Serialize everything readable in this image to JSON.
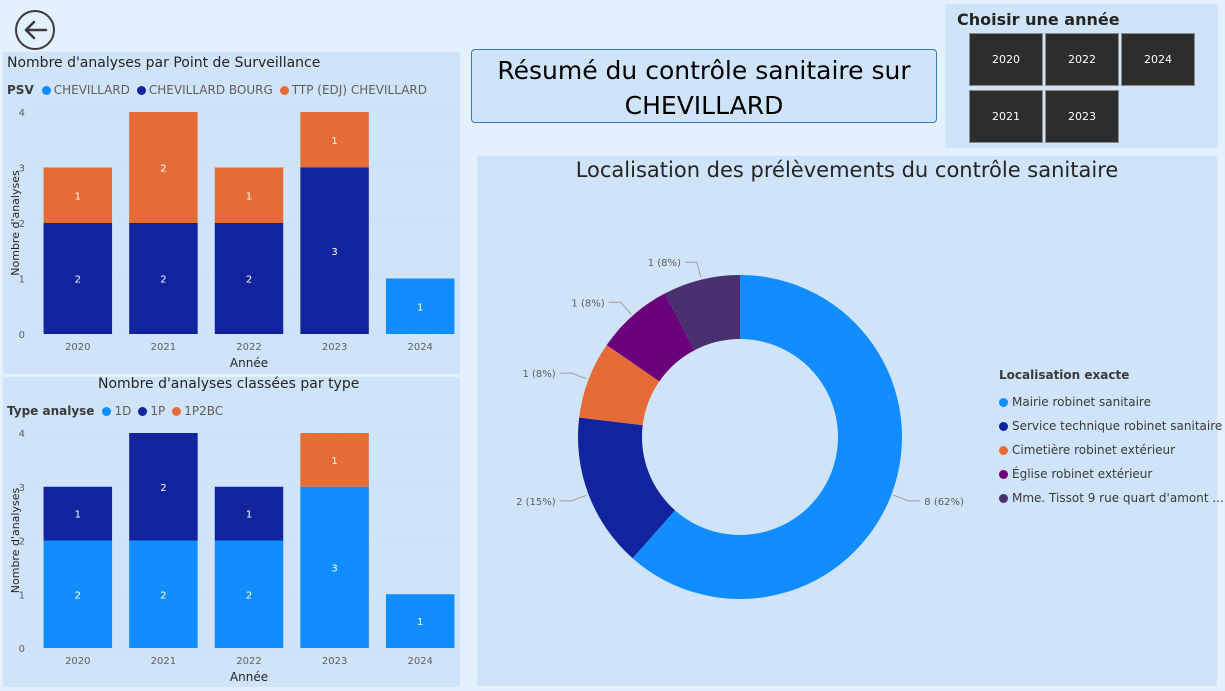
{
  "colors": {
    "light_blue": "#118dff",
    "dark_blue": "#12239e",
    "orange": "#e66c37",
    "purple": "#6b007b",
    "violet": "#4a2f6f"
  },
  "back_icon": "arrow-left-circle-icon",
  "summary": {
    "line1": "Résumé du contrôle sanitaire sur",
    "line2": "CHEVILLARD"
  },
  "year_filter": {
    "title": "Choisir une année",
    "years": [
      "2020",
      "2022",
      "2024",
      "2021",
      "2023"
    ]
  },
  "chart_data": [
    {
      "type": "bar",
      "stacked": true,
      "title": "Nombre d'analyses par Point de Surveillance",
      "legend_title": "PSV",
      "legend_position": "top-left",
      "categories": [
        "2020",
        "2021",
        "2022",
        "2023",
        "2024"
      ],
      "series": [
        {
          "name": "CHEVILLARD",
          "color": "#118dff",
          "values": [
            0,
            0,
            0,
            0,
            1
          ]
        },
        {
          "name": "CHEVILLARD BOURG",
          "color": "#12239e",
          "values": [
            2,
            2,
            2,
            3,
            0
          ]
        },
        {
          "name": "TTP (EDJ) CHEVILLARD",
          "color": "#e66c37",
          "values": [
            1,
            2,
            1,
            1,
            0
          ]
        }
      ],
      "xlabel": "Année",
      "ylabel": "Nombre d'analyses",
      "ylim": [
        0,
        4
      ],
      "yticks": [
        "0",
        "1",
        "2",
        "3",
        "4"
      ],
      "grid": true
    },
    {
      "type": "bar",
      "stacked": true,
      "title": "Nombre d'analyses classées par type",
      "legend_title": "Type analyse",
      "legend_position": "top-left",
      "categories": [
        "2020",
        "2021",
        "2022",
        "2023",
        "2024"
      ],
      "series": [
        {
          "name": "1D",
          "color": "#118dff",
          "values": [
            2,
            2,
            2,
            3,
            1
          ]
        },
        {
          "name": "1P",
          "color": "#12239e",
          "values": [
            1,
            2,
            1,
            0,
            0
          ]
        },
        {
          "name": "1P2BC",
          "color": "#e66c37",
          "values": [
            0,
            0,
            0,
            1,
            0
          ]
        }
      ],
      "xlabel": "Année",
      "ylabel": "Nombre d'analyses",
      "ylim": [
        0,
        4
      ],
      "yticks": [
        "0",
        "1",
        "2",
        "3",
        "4"
      ],
      "grid": true
    },
    {
      "type": "pie",
      "donut": true,
      "title": "Localisation des prélèvements du contrôle sanitaire",
      "legend_title": "Localisation exacte",
      "legend_position": "right",
      "slices": [
        {
          "name": "Mairie robinet sanitaire",
          "value": 8,
          "label": "8 (62%)",
          "color": "#118dff"
        },
        {
          "name": "Service technique robinet sanitaire",
          "value": 2,
          "label": "2 (15%)",
          "color": "#12239e"
        },
        {
          "name": "Cimetière robinet extérieur",
          "value": 1,
          "label": "1 (8%)",
          "color": "#e66c37"
        },
        {
          "name": "Église robinet extérieur",
          "value": 1,
          "label": "1 (8%)",
          "color": "#6b007b"
        },
        {
          "name": "Mme. Tissot 9 rue quart d'amont ...",
          "value": 1,
          "label": "1 (8%)",
          "color": "#4a2f6f"
        }
      ]
    }
  ]
}
